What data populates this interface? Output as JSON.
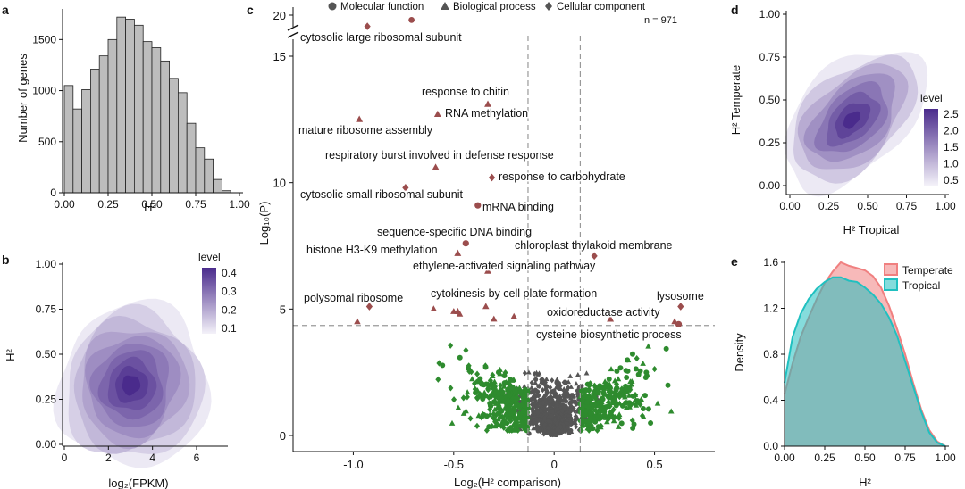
{
  "panel_letters": {
    "a": "a",
    "b": "b",
    "c": "c",
    "d": "d",
    "e": "e"
  },
  "colors": {
    "hist_fill": "#bdbdbd",
    "purple_dark": "#4a2b8c",
    "purple_light": "#ece9f4",
    "sig_point": "#9b4d4d",
    "nonsig_green": "#2e8b2e",
    "nonsig_gray": "#555555",
    "temperate": "#f08080",
    "tropical": "#20c0c0",
    "overlap": "#5e9e92"
  },
  "chart_data": [
    {
      "panel": "a",
      "type": "bar",
      "xlabel": "H²",
      "ylabel": "Number of genes",
      "xlim": [
        0,
        1
      ],
      "ylim": [
        0,
        1800
      ],
      "xticks": [
        "0.00",
        "0.25",
        "0.50",
        "0.75",
        "1.00"
      ],
      "yticks": [
        "0",
        "500",
        "1000",
        "1500"
      ],
      "bin_width": 0.05,
      "bin_starts": [
        0.0,
        0.05,
        0.1,
        0.15,
        0.2,
        0.25,
        0.3,
        0.35,
        0.4,
        0.45,
        0.5,
        0.55,
        0.6,
        0.65,
        0.7,
        0.75,
        0.8,
        0.85,
        0.9
      ],
      "values": [
        1050,
        820,
        1010,
        1210,
        1340,
        1500,
        1720,
        1700,
        1640,
        1480,
        1420,
        1290,
        1120,
        980,
        680,
        440,
        330,
        130,
        20
      ]
    },
    {
      "panel": "b",
      "type": "heatmap",
      "xlabel": "log₂(FPKM)",
      "ylabel": "H²",
      "xlim": [
        0,
        7.5
      ],
      "ylim": [
        0,
        1
      ],
      "xticks": [
        "0",
        "2",
        "4",
        "6"
      ],
      "yticks": [
        "0.00",
        "0.25",
        "0.50",
        "0.75",
        "1.00"
      ],
      "legend_title": "level",
      "legend_ticks": [
        "0.4",
        "0.3",
        "0.2",
        "0.1"
      ],
      "density_center": [
        3.0,
        0.33
      ],
      "contour_levels": [
        0.05,
        0.1,
        0.15,
        0.2,
        0.25,
        0.3,
        0.35,
        0.4
      ]
    },
    {
      "panel": "c",
      "type": "scatter",
      "xlabel": "Log₂(H² comparison)",
      "ylabel": "Log₁₀(P)",
      "xlim": [
        -1.3,
        0.8
      ],
      "ylim": [
        0,
        20
      ],
      "xticks": [
        "-1.0",
        "-0.5",
        "0",
        "0.5"
      ],
      "yticks": [
        "0",
        "5",
        "10",
        "15",
        "20"
      ],
      "y_axis_break": true,
      "n_label": "n = 971",
      "legend": [
        {
          "shape": "circle",
          "label": "Molecular function"
        },
        {
          "shape": "triangle",
          "label": "Biological process"
        },
        {
          "shape": "diamond",
          "label": "Cellular component"
        }
      ],
      "threshold_x": [
        -0.13,
        0.13
      ],
      "threshold_y": 4.35,
      "labeled_points": [
        {
          "label": "cytosolic large ribosomal subunit",
          "x": -0.93,
          "y": 18.6,
          "shape": "diamond"
        },
        {
          "label": "response to chitin",
          "x": -0.33,
          "y": 13.1,
          "shape": "triangle"
        },
        {
          "label": "RNA methylation",
          "x": -0.58,
          "y": 12.7,
          "shape": "triangle"
        },
        {
          "label": "mature ribosome assembly",
          "x": -0.97,
          "y": 12.5,
          "shape": "triangle"
        },
        {
          "label": "respiratory burst involved in defense response",
          "x": -0.59,
          "y": 10.6,
          "shape": "triangle"
        },
        {
          "label": "response to carbohydrate",
          "x": -0.31,
          "y": 10.2,
          "shape": "diamond"
        },
        {
          "label": "cytosolic small ribosomal subunit",
          "x": -0.74,
          "y": 9.8,
          "shape": "diamond"
        },
        {
          "label": "mRNA binding",
          "x": -0.38,
          "y": 9.1,
          "shape": "circle"
        },
        {
          "label": "sequence-specific DNA binding",
          "x": -0.44,
          "y": 7.6,
          "shape": "circle"
        },
        {
          "label": "chloroplast thylakoid membrane",
          "x": 0.2,
          "y": 7.1,
          "shape": "diamond"
        },
        {
          "label": "histone H3-K9 methylation",
          "x": -0.48,
          "y": 7.2,
          "shape": "triangle"
        },
        {
          "label": "ethylene-activated signaling pathway",
          "x": -0.33,
          "y": 6.5,
          "shape": "triangle"
        },
        {
          "label": "polysomal ribosome",
          "x": -0.92,
          "y": 5.1,
          "shape": "diamond"
        },
        {
          "label": "cytokinesis by cell plate formation",
          "x": -0.48,
          "y": 4.9,
          "shape": "triangle"
        },
        {
          "label": "lysosome",
          "x": 0.63,
          "y": 5.1,
          "shape": "diamond"
        },
        {
          "label": "oxidoreductase activity",
          "x": 0.28,
          "y": 4.6,
          "shape": "triangle"
        },
        {
          "label": "cysteine biosynthetic process",
          "x": 0.62,
          "y": 4.4,
          "shape": "circle"
        }
      ]
    },
    {
      "panel": "d",
      "type": "heatmap",
      "xlabel": "H² Tropical",
      "ylabel": "H² Temperate",
      "xlim": [
        0,
        1
      ],
      "ylim": [
        0,
        1
      ],
      "xticks": [
        "0.00",
        "0.25",
        "0.50",
        "0.75",
        "1.00"
      ],
      "yticks": [
        "0.00",
        "0.25",
        "0.50",
        "0.75",
        "1.00"
      ],
      "legend_title": "level",
      "legend_ticks": [
        "2.5",
        "2.0",
        "1.5",
        "1.0",
        "0.5"
      ],
      "density_center": [
        0.35,
        0.33
      ],
      "contour_levels": [
        0.25,
        0.5,
        0.75,
        1.0,
        1.5,
        2.0,
        2.5
      ]
    },
    {
      "panel": "e",
      "type": "area",
      "xlabel": "H²",
      "ylabel": "Density",
      "xlim": [
        0,
        1
      ],
      "ylim": [
        0,
        1.6
      ],
      "xticks": [
        "0.00",
        "0.25",
        "0.50",
        "0.75",
        "1.00"
      ],
      "yticks": [
        "0.0",
        "0.4",
        "0.8",
        "1.2",
        "1.6"
      ],
      "legend_position": "top-right",
      "x": [
        0.0,
        0.05,
        0.1,
        0.15,
        0.2,
        0.25,
        0.3,
        0.35,
        0.4,
        0.45,
        0.5,
        0.55,
        0.6,
        0.65,
        0.7,
        0.75,
        0.8,
        0.85,
        0.9,
        0.95,
        1.0
      ],
      "series": [
        {
          "name": "Temperate",
          "values": [
            0.45,
            0.72,
            0.95,
            1.12,
            1.28,
            1.42,
            1.52,
            1.6,
            1.57,
            1.55,
            1.53,
            1.48,
            1.38,
            1.22,
            1.02,
            0.8,
            0.55,
            0.32,
            0.14,
            0.04,
            0.0
          ]
        },
        {
          "name": "Tropical",
          "values": [
            0.55,
            0.95,
            1.15,
            1.28,
            1.37,
            1.43,
            1.47,
            1.47,
            1.44,
            1.43,
            1.38,
            1.32,
            1.24,
            1.12,
            0.96,
            0.74,
            0.52,
            0.3,
            0.12,
            0.03,
            0.0
          ]
        }
      ]
    }
  ]
}
